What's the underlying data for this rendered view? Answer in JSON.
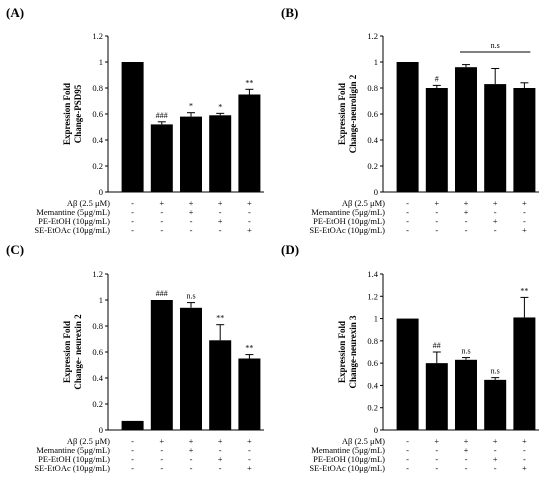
{
  "chart_data": [
    {
      "type": "bar",
      "panel_label": "(A)",
      "ylabel": [
        "Expression Fold",
        "Change-PSD95"
      ],
      "ylim": [
        0,
        1.2
      ],
      "yticks": [
        "0",
        "0.2",
        "0.4",
        "0.6",
        "0.8",
        "1",
        "1.2"
      ],
      "values": [
        1.0,
        0.52,
        0.58,
        0.59,
        0.75
      ],
      "errors": [
        0.0,
        0.02,
        0.03,
        0.015,
        0.04
      ],
      "significance": [
        "",
        "###",
        "*",
        "*",
        "**"
      ],
      "bracket": null,
      "treatments": [
        {
          "label": "Aβ (2.5 μM)",
          "marks": [
            "-",
            "+",
            "+",
            "+",
            "+"
          ]
        },
        {
          "label": "Memantine (5μg/mL)",
          "marks": [
            "-",
            "-",
            "+",
            "-",
            "-"
          ]
        },
        {
          "label": "PE-EtOH (10μg/mL)",
          "marks": [
            "-",
            "-",
            "-",
            "+",
            "-"
          ]
        },
        {
          "label": "SE-EtOAc (10μg/mL)",
          "marks": [
            "-",
            "-",
            "-",
            "-",
            "+"
          ]
        }
      ],
      "bar_color": "#000000"
    },
    {
      "type": "bar",
      "panel_label": "(B)",
      "ylabel": [
        "Expression Fold",
        "Change-neuroligin 2"
      ],
      "ylim": [
        0,
        1.2
      ],
      "yticks": [
        "0",
        "0.2",
        "0.4",
        "0.6",
        "0.8",
        "1",
        "1.2"
      ],
      "values": [
        1.0,
        0.8,
        0.96,
        0.83,
        0.8
      ],
      "errors": [
        0.0,
        0.02,
        0.02,
        0.12,
        0.04
      ],
      "significance": [
        "",
        "#",
        "",
        "",
        ""
      ],
      "bracket": {
        "from": 2,
        "to": 4,
        "label": "n.s"
      },
      "treatments": [
        {
          "label": "Aβ (2.5 μM)",
          "marks": [
            "-",
            "+",
            "+",
            "+",
            "+"
          ]
        },
        {
          "label": "Memantine (5μg/mL)",
          "marks": [
            "-",
            "-",
            "+",
            "-",
            "-"
          ]
        },
        {
          "label": "PE-EtOH (10μg/mL)",
          "marks": [
            "-",
            "-",
            "-",
            "+",
            "-"
          ]
        },
        {
          "label": "SE-EtOAc (10μg/mL)",
          "marks": [
            "-",
            "-",
            "-",
            "-",
            "+"
          ]
        }
      ],
      "bar_color": "#000000"
    },
    {
      "type": "bar",
      "panel_label": "(C)",
      "ylabel": [
        "Expression Fold",
        "Change- neurexin 2"
      ],
      "ylim": [
        0,
        1.2
      ],
      "yticks": [
        "0",
        "0.2",
        "0.4",
        "0.6",
        "0.8",
        "1",
        "1.2"
      ],
      "values": [
        0.07,
        1.0,
        0.94,
        0.69,
        0.55
      ],
      "errors": [
        0.0,
        0.0,
        0.04,
        0.12,
        0.03
      ],
      "significance": [
        "",
        "###",
        "n.s",
        "**",
        "**"
      ],
      "bracket": null,
      "treatments": [
        {
          "label": "Aβ (2.5 μM)",
          "marks": [
            "-",
            "+",
            "+",
            "+",
            "+"
          ]
        },
        {
          "label": "Memantine (5μg/mL)",
          "marks": [
            "-",
            "-",
            "+",
            "-",
            "-"
          ]
        },
        {
          "label": "PE-EtOH (10μg/mL)",
          "marks": [
            "-",
            "-",
            "-",
            "+",
            "-"
          ]
        },
        {
          "label": "SE-EtOAc (10μg/mL)",
          "marks": [
            "-",
            "-",
            "-",
            "-",
            "+"
          ]
        }
      ],
      "bar_color": "#000000"
    },
    {
      "type": "bar",
      "panel_label": "(D)",
      "ylabel": [
        "Expression Fold",
        "Change-neurexin 3"
      ],
      "ylim": [
        0,
        1.4
      ],
      "yticks": [
        "0",
        "0.2",
        "0.4",
        "0.6",
        "0.8",
        "1",
        "1.2",
        "1.4"
      ],
      "values": [
        1.0,
        0.6,
        0.63,
        0.45,
        1.01
      ],
      "errors": [
        0.0,
        0.1,
        0.02,
        0.02,
        0.18
      ],
      "significance": [
        "",
        "##",
        "n.s",
        "n.s",
        "**"
      ],
      "bracket": null,
      "treatments": [
        {
          "label": "Aβ (2.5 μM)",
          "marks": [
            "-",
            "+",
            "+",
            "+",
            "+"
          ]
        },
        {
          "label": "Memantine (5μg/mL)",
          "marks": [
            "-",
            "-",
            "+",
            "-",
            "-"
          ]
        },
        {
          "label": "PE-EtOH (10μg/mL)",
          "marks": [
            "-",
            "-",
            "-",
            "+",
            "-"
          ]
        },
        {
          "label": "SE-EtOAc (10μg/mL)",
          "marks": [
            "-",
            "-",
            "-",
            "-",
            "+"
          ]
        }
      ],
      "bar_color": "#000000"
    }
  ]
}
